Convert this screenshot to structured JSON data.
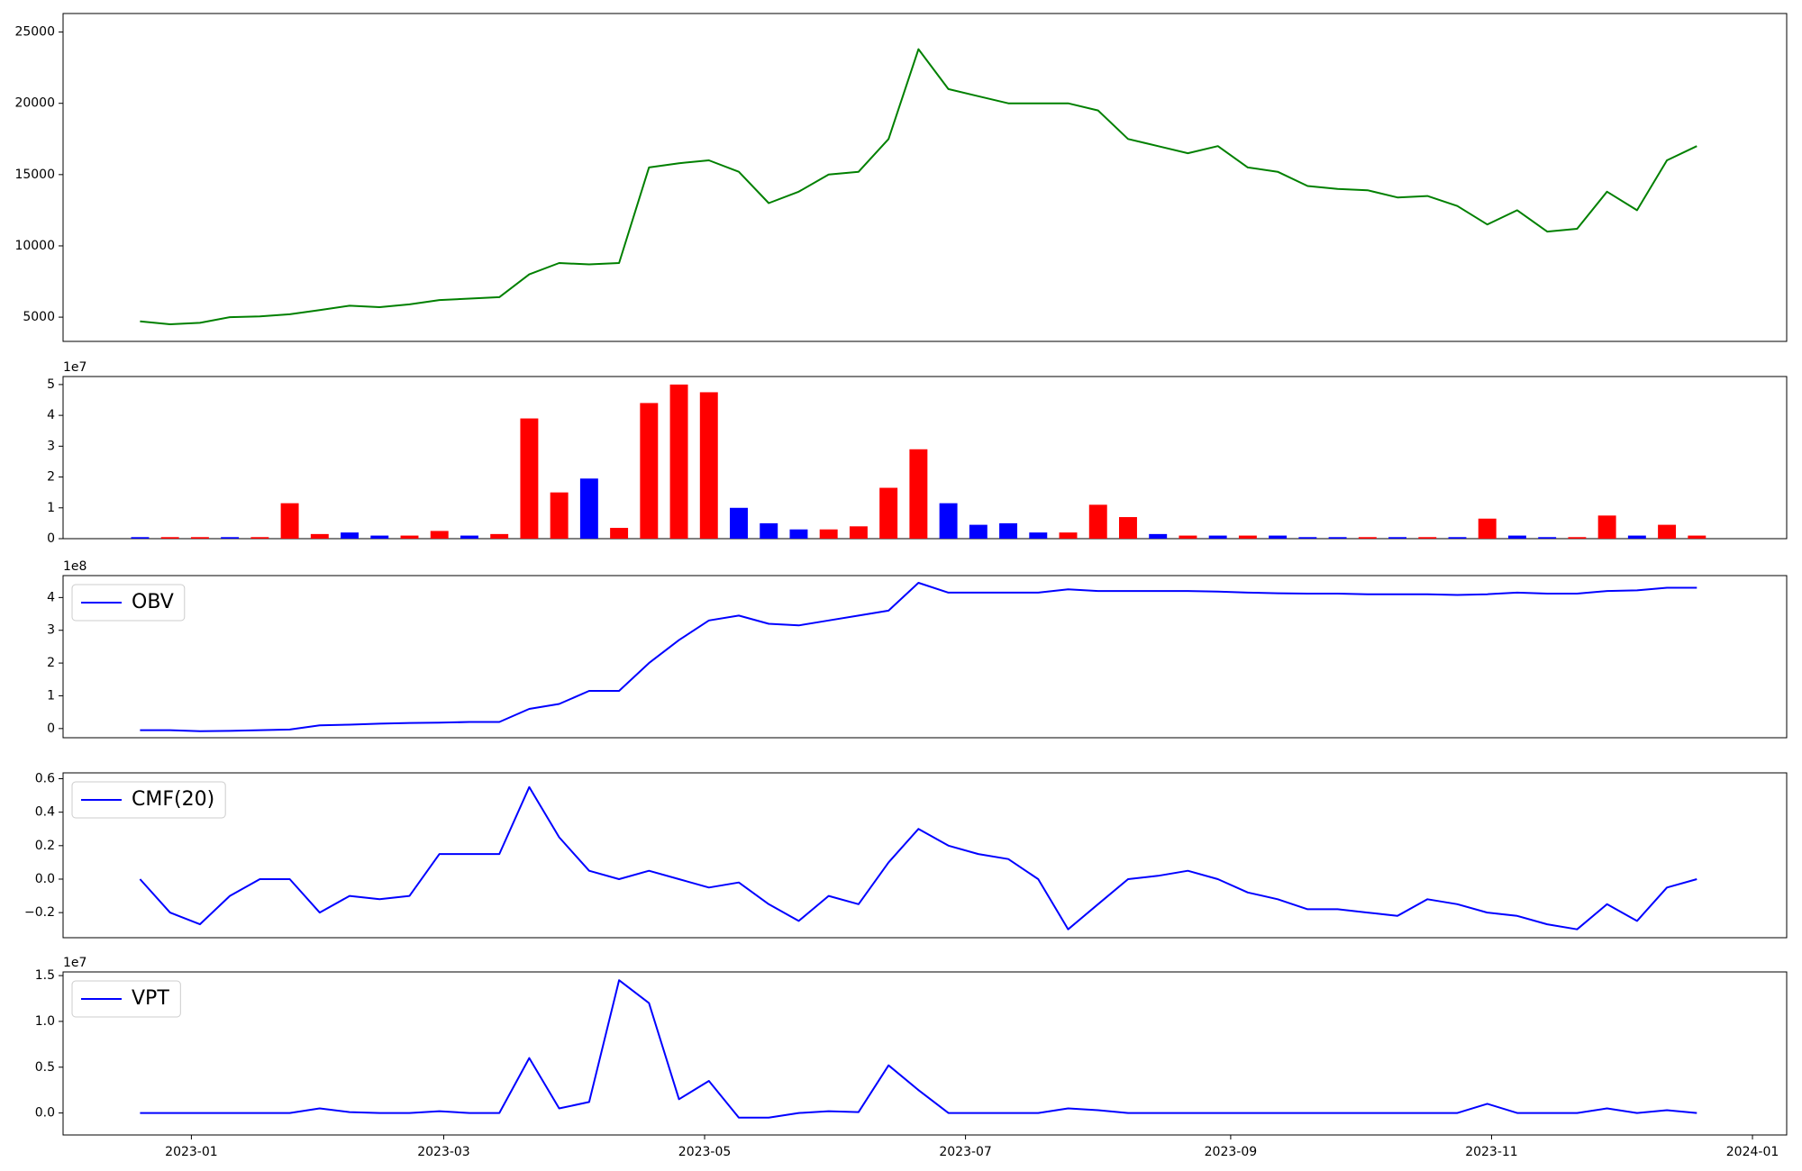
{
  "chart_data": [
    {
      "type": "line",
      "color": "green",
      "x": [
        -12,
        -5,
        2,
        9,
        16,
        23,
        30,
        37,
        44,
        51,
        58,
        65,
        72,
        79,
        86,
        93,
        100,
        107,
        114,
        121,
        128,
        135,
        142,
        149,
        156,
        163,
        170,
        177,
        184,
        191,
        198,
        205,
        212,
        219,
        226,
        233,
        240,
        247,
        254,
        261,
        268,
        275,
        282,
        289,
        296,
        303,
        310,
        317,
        324,
        331,
        338,
        345,
        352
      ],
      "values": [
        4700,
        4500,
        4600,
        5000,
        5050,
        5200,
        5500,
        5800,
        5700,
        5900,
        6200,
        6300,
        6400,
        8000,
        8800,
        8700,
        8800,
        15500,
        15800,
        16000,
        15200,
        13000,
        13800,
        15000,
        15200,
        17500,
        23800,
        21000,
        20500,
        20000,
        20000,
        20000,
        19500,
        17500,
        17000,
        16500,
        17000,
        15500,
        15200,
        14200,
        14000,
        13900,
        13400,
        13500,
        12800,
        11500,
        12500,
        11000,
        11200,
        13800,
        12500,
        16000,
        17000
      ],
      "xlim": [
        -30,
        373
      ],
      "ylim": [
        3300,
        26300
      ],
      "yticks": [
        5000,
        10000,
        15000,
        20000,
        25000
      ]
    },
    {
      "type": "bar",
      "offset_text": "1e7",
      "x": [
        -12,
        -5,
        2,
        9,
        16,
        23,
        30,
        37,
        44,
        51,
        58,
        65,
        72,
        79,
        86,
        93,
        100,
        107,
        114,
        121,
        128,
        135,
        142,
        149,
        156,
        163,
        170,
        177,
        184,
        191,
        198,
        205,
        212,
        219,
        226,
        233,
        240,
        247,
        254,
        261,
        268,
        275,
        282,
        289,
        296,
        303,
        310,
        317,
        324,
        331,
        338,
        345,
        352
      ],
      "values": [
        0.05,
        0.05,
        0.05,
        0.05,
        0.05,
        1.15,
        0.15,
        0.2,
        0.1,
        0.1,
        0.25,
        0.1,
        0.15,
        3.9,
        1.5,
        1.95,
        0.35,
        4.4,
        5.0,
        4.75,
        1.0,
        0.5,
        0.3,
        0.3,
        0.4,
        1.65,
        2.9,
        1.15,
        0.45,
        0.5,
        0.2,
        0.2,
        1.1,
        0.7,
        0.15,
        0.1,
        0.1,
        0.1,
        0.1,
        0.05,
        0.05,
        0.05,
        0.05,
        0.05,
        0.05,
        0.65,
        0.1,
        0.05,
        0.05,
        0.75,
        0.1,
        0.45,
        0.1
      ],
      "colors": [
        "blue",
        "red",
        "red",
        "blue",
        "red",
        "red",
        "red",
        "blue",
        "blue",
        "red",
        "red",
        "blue",
        "red",
        "red",
        "red",
        "blue",
        "red",
        "red",
        "red",
        "red",
        "blue",
        "blue",
        "blue",
        "red",
        "red",
        "red",
        "red",
        "blue",
        "blue",
        "blue",
        "blue",
        "red",
        "red",
        "red",
        "blue",
        "red",
        "blue",
        "red",
        "blue",
        "blue",
        "blue",
        "red",
        "blue",
        "red",
        "blue",
        "red",
        "blue",
        "blue",
        "red",
        "red",
        "blue",
        "red",
        "red"
      ],
      "xlim": [
        -30,
        373
      ],
      "ylim": [
        0,
        5.26
      ],
      "yticks": [
        0,
        1,
        2,
        3,
        4,
        5
      ]
    },
    {
      "type": "line",
      "offset_text": "1e8",
      "legend": "upper left",
      "x": [
        -12,
        -5,
        2,
        9,
        16,
        23,
        30,
        37,
        44,
        51,
        58,
        65,
        72,
        79,
        86,
        93,
        100,
        107,
        114,
        121,
        128,
        135,
        142,
        149,
        156,
        163,
        170,
        177,
        184,
        191,
        198,
        205,
        212,
        219,
        226,
        233,
        240,
        247,
        254,
        261,
        268,
        275,
        282,
        289,
        296,
        303,
        310,
        317,
        324,
        331,
        338,
        345,
        352
      ],
      "series": [
        {
          "name": "OBV",
          "color": "blue",
          "values": [
            -0.05,
            -0.05,
            -0.08,
            -0.07,
            -0.05,
            -0.03,
            0.1,
            0.12,
            0.15,
            0.17,
            0.18,
            0.2,
            0.2,
            0.6,
            0.75,
            1.15,
            1.15,
            2.0,
            2.7,
            3.3,
            3.45,
            3.2,
            3.15,
            3.3,
            3.45,
            3.6,
            4.45,
            4.15,
            4.15,
            4.15,
            4.15,
            4.25,
            4.2,
            4.2,
            4.2,
            4.2,
            4.18,
            4.15,
            4.13,
            4.12,
            4.12,
            4.1,
            4.1,
            4.1,
            4.08,
            4.1,
            4.15,
            4.12,
            4.12,
            4.2,
            4.22,
            4.3,
            4.3
          ]
        }
      ],
      "xlim": [
        -30,
        373
      ],
      "ylim": [
        -0.28,
        4.67
      ],
      "yticks": [
        0,
        1,
        2,
        3,
        4
      ]
    },
    {
      "type": "line",
      "legend": "upper left",
      "x": [
        -12,
        -5,
        2,
        9,
        16,
        23,
        30,
        37,
        44,
        51,
        58,
        65,
        72,
        79,
        86,
        93,
        100,
        107,
        114,
        121,
        128,
        135,
        142,
        149,
        156,
        163,
        170,
        177,
        184,
        191,
        198,
        205,
        212,
        219,
        226,
        233,
        240,
        247,
        254,
        261,
        268,
        275,
        282,
        289,
        296,
        303,
        310,
        317,
        324,
        331,
        338,
        345,
        352
      ],
      "series": [
        {
          "name": "CMF(20)",
          "color": "blue",
          "values": [
            0.0,
            -0.2,
            -0.27,
            -0.1,
            0.0,
            0.0,
            -0.2,
            -0.1,
            -0.12,
            -0.1,
            0.15,
            0.15,
            0.15,
            0.55,
            0.25,
            0.05,
            0.0,
            0.05,
            0.0,
            -0.05,
            -0.02,
            -0.15,
            -0.25,
            -0.1,
            -0.15,
            0.1,
            0.3,
            0.2,
            0.15,
            0.12,
            0.0,
            -0.3,
            -0.15,
            0.0,
            0.02,
            0.05,
            0.0,
            -0.08,
            -0.12,
            -0.18,
            -0.18,
            -0.2,
            -0.22,
            -0.12,
            -0.15,
            -0.2,
            -0.22,
            -0.27,
            -0.3,
            -0.15,
            -0.25,
            -0.05,
            0.0
          ]
        }
      ],
      "xlim": [
        -30,
        373
      ],
      "ylim": [
        -0.35,
        0.635
      ],
      "yticks": [
        {
          "value": -0.2,
          "label": "−0.2"
        },
        {
          "value": 0,
          "label": "0.0"
        },
        0.2,
        0.4,
        0.6
      ]
    },
    {
      "type": "line",
      "offset_text": "1e7",
      "legend": "upper left",
      "x": [
        -12,
        -5,
        2,
        9,
        16,
        23,
        30,
        37,
        44,
        51,
        58,
        65,
        72,
        79,
        86,
        93,
        100,
        107,
        114,
        121,
        128,
        135,
        142,
        149,
        156,
        163,
        170,
        177,
        184,
        191,
        198,
        205,
        212,
        219,
        226,
        233,
        240,
        247,
        254,
        261,
        268,
        275,
        282,
        289,
        296,
        303,
        310,
        317,
        324,
        331,
        338,
        345,
        352
      ],
      "series": [
        {
          "name": "VPT",
          "color": "blue",
          "values": [
            0,
            0,
            0,
            0,
            0,
            0,
            0.05,
            0.01,
            0,
            0,
            0.02,
            0,
            0,
            0.6,
            0.05,
            0.12,
            1.45,
            1.2,
            0.15,
            0.35,
            -0.05,
            -0.05,
            0,
            0.02,
            0.01,
            0.52,
            0.25,
            0,
            0,
            0,
            0,
            0.05,
            0.03,
            0,
            0,
            0,
            0,
            0,
            0,
            0,
            0,
            0,
            0,
            0,
            0,
            0.1,
            0,
            0,
            0,
            0.05,
            0,
            0.03,
            0
          ]
        }
      ],
      "xlim": [
        -30,
        373
      ],
      "ylim": [
        -0.24,
        1.54
      ],
      "yticks": [
        {
          "value": 0,
          "label": "0.0"
        },
        {
          "value": 0.5,
          "label": "0.5"
        },
        {
          "value": 1,
          "label": "1.0"
        },
        1.5
      ],
      "xticks": [
        {
          "value": 0,
          "label": "2023-01"
        },
        {
          "value": 59,
          "label": "2023-03"
        },
        {
          "value": 120,
          "label": "2023-05"
        },
        {
          "value": 181,
          "label": "2023-07"
        },
        {
          "value": 243,
          "label": "2023-09"
        },
        {
          "value": 304,
          "label": "2023-11"
        },
        {
          "value": 365,
          "label": "2024-01"
        }
      ]
    }
  ]
}
